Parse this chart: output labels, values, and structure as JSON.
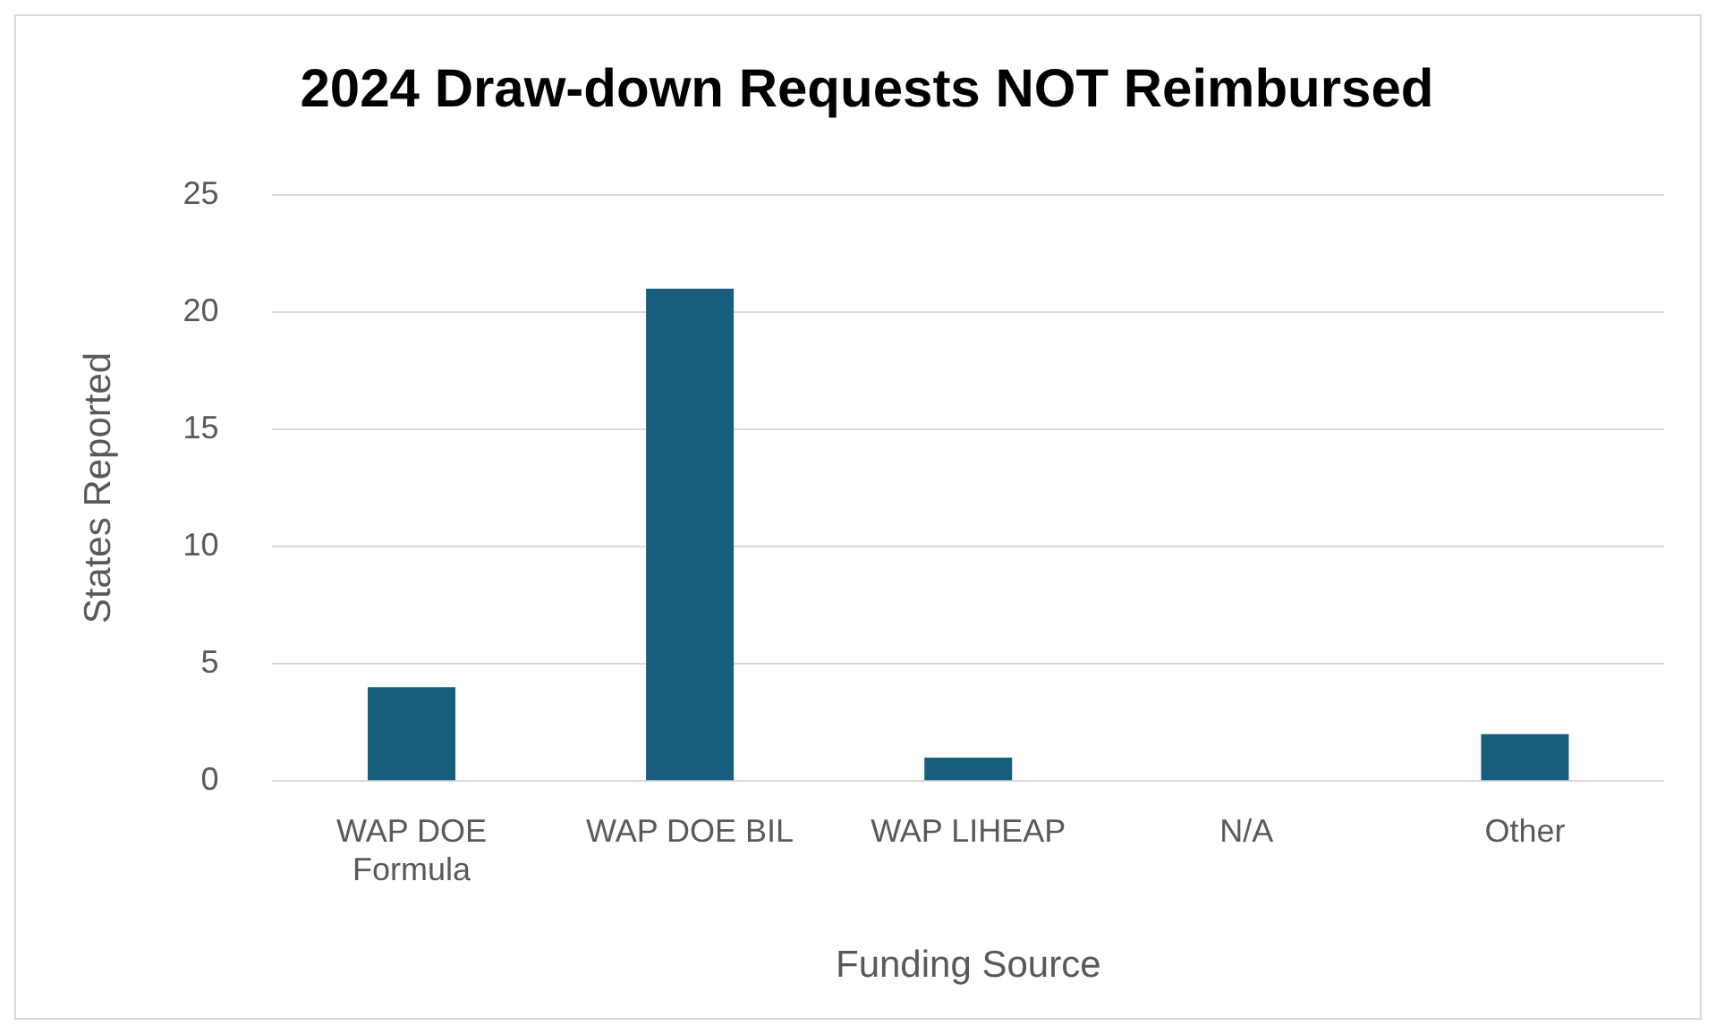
{
  "chart_data": {
    "type": "bar",
    "title": "2024 Draw-down Requests NOT Reimbursed",
    "xlabel": "Funding Source",
    "ylabel": "States Reported",
    "categories": [
      "WAP DOE Formula",
      "WAP DOE BIL",
      "WAP LIHEAP",
      "N/A",
      "Other"
    ],
    "values": [
      4,
      21,
      1,
      0,
      2
    ],
    "color": "#175e7e",
    "ylim": [
      0,
      25
    ],
    "yticks": [
      0,
      5,
      10,
      15,
      20,
      25
    ],
    "grid": "y",
    "legend": false
  }
}
